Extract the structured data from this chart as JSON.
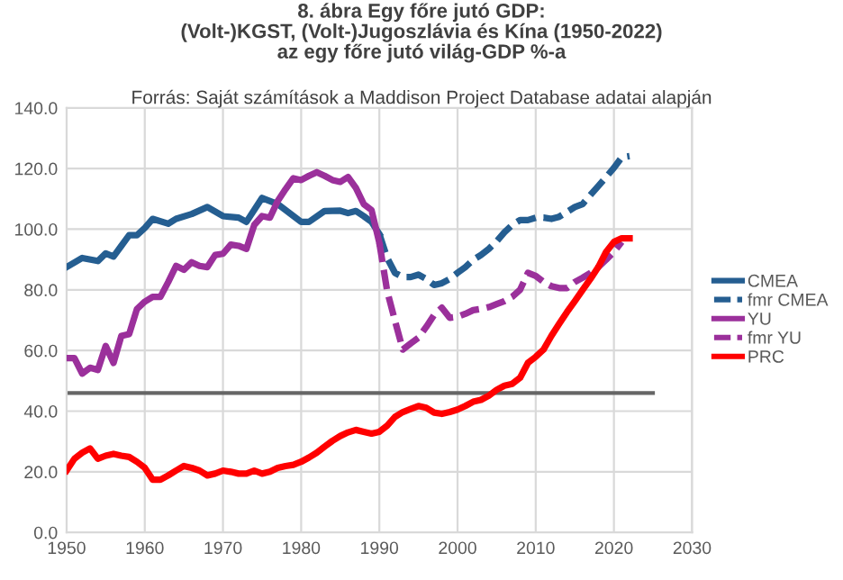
{
  "chart_data": {
    "type": "line",
    "title": "8. ábra Egy főre jutó GDP:\n(Volt-)KGST, (Volt-)Jugoszlávia és Kína (1950-2022)\naz egy főre jutó világ-GDP %-a",
    "subtitle": "Forrás: Saját számítások a Maddison Project Database adatai alapján",
    "xlim": [
      1950,
      2030
    ],
    "xticks": [
      1950,
      1960,
      1970,
      1980,
      1990,
      2000,
      2010,
      2020,
      2030
    ],
    "ylim": [
      0,
      140
    ],
    "yticks": [
      {
        "value": 0,
        "label": "0.0"
      },
      {
        "value": 20,
        "label": "20.0"
      },
      {
        "value": 40,
        "label": "40.0"
      },
      {
        "value": 60,
        "label": "60.0"
      },
      {
        "value": 80,
        "label": "80.0"
      },
      {
        "value": 100,
        "label": "100.0"
      },
      {
        "value": 120,
        "label": "120.0"
      },
      {
        "value": 140,
        "label": "140.0"
      }
    ],
    "grid": true,
    "legend": "right",
    "series": [
      {
        "name": "CMEA",
        "color": "#255e91",
        "line_style": "solid",
        "x": [
          1950,
          1952,
          1954,
          1955,
          1956,
          1957,
          1958,
          1959,
          1960,
          1961,
          1963,
          1964,
          1966,
          1968,
          1970,
          1972,
          1973,
          1975,
          1977,
          1980,
          1981,
          1983,
          1985,
          1986,
          1987,
          1988,
          1989,
          1990
        ],
        "values": [
          87.5,
          90.5,
          89.5,
          92,
          91,
          94.5,
          98,
          98,
          100.4,
          103.4,
          101.8,
          103.4,
          105,
          107.3,
          104.3,
          103.8,
          102.4,
          110.3,
          108.3,
          102.4,
          102.4,
          106,
          106.1,
          105.3,
          106,
          104.3,
          102.4,
          98.4
        ]
      },
      {
        "name": "fmr CMEA",
        "color": "#255e91",
        "line_style": "dashed",
        "x": [
          1990,
          1991,
          1992,
          1993,
          1994,
          1995,
          1996,
          1997,
          1998,
          1999,
          2000,
          2001,
          2002,
          2003,
          2004,
          2005,
          2006,
          2007,
          2008,
          2009,
          2010,
          2011,
          2012,
          2013,
          2014,
          2015,
          2016,
          2017,
          2018,
          2019,
          2020,
          2021,
          2022
        ],
        "values": [
          98.4,
          90.5,
          85.6,
          84.2,
          84.2,
          85,
          83.6,
          81.6,
          82.2,
          83.6,
          85.6,
          87.5,
          89.9,
          91.5,
          93.5,
          96,
          99,
          101.4,
          103,
          103,
          103.8,
          103.8,
          103.4,
          104.1,
          105.7,
          107.3,
          108.3,
          111.3,
          114.2,
          117.2,
          120.2,
          123.7,
          124.1
        ]
      },
      {
        "name": "YU",
        "color": "#9b309b",
        "line_style": "solid",
        "x": [
          1950,
          1951,
          1952,
          1953,
          1954,
          1955,
          1956,
          1957,
          1958,
          1959,
          1960,
          1961,
          1962,
          1963,
          1964,
          1965,
          1966,
          1967,
          1968,
          1969,
          1970,
          1971,
          1972,
          1973,
          1974,
          1975,
          1976,
          1977,
          1978,
          1979,
          1980,
          1981,
          1982,
          1983,
          1984,
          1985,
          1986,
          1987,
          1988,
          1989,
          1990
        ],
        "values": [
          57.5,
          57.5,
          52.4,
          54.3,
          53.6,
          61.5,
          55.9,
          64.8,
          65.4,
          73.7,
          76.1,
          77.7,
          77.7,
          82.6,
          87.9,
          86.6,
          89.1,
          87.9,
          87.5,
          91.5,
          91.9,
          94.9,
          94.5,
          93.5,
          101.4,
          104.3,
          103.8,
          109.3,
          113.2,
          116.8,
          116.2,
          117.6,
          118.8,
          117.6,
          116.2,
          115.6,
          117.2,
          113.6,
          108.3,
          106.3,
          95.5
        ]
      },
      {
        "name": "fmr YU",
        "color": "#9b309b",
        "line_style": "dashed",
        "x": [
          1990,
          1991,
          1992,
          1993,
          1994,
          1995,
          1996,
          1997,
          1998,
          1999,
          2000,
          2001,
          2002,
          2003,
          2004,
          2005,
          2006,
          2007,
          2008,
          2009,
          2010,
          2011,
          2012,
          2013,
          2014,
          2015,
          2016,
          2017,
          2018,
          2019,
          2020,
          2021
        ],
        "values": [
          95.5,
          79.6,
          69.8,
          60.3,
          62.3,
          64.2,
          67.8,
          71.7,
          74.1,
          70.8,
          71.1,
          72.1,
          73.3,
          73.7,
          74.3,
          75.3,
          76.3,
          77.7,
          80,
          85.6,
          84.6,
          82.6,
          81.2,
          80.6,
          80.6,
          82.6,
          84,
          85.6,
          87.5,
          89.9,
          92.5,
          95.8
        ]
      },
      {
        "name": "PRC",
        "color": "#ff0000",
        "line_style": "solid",
        "x": [
          1950,
          1951,
          1952,
          1953,
          1954,
          1955,
          1956,
          1957,
          1958,
          1959,
          1960,
          1961,
          1962,
          1963,
          1964,
          1965,
          1966,
          1967,
          1968,
          1969,
          1970,
          1971,
          1972,
          1973,
          1974,
          1975,
          1976,
          1977,
          1978,
          1979,
          1980,
          1981,
          1982,
          1983,
          1984,
          1985,
          1986,
          1987,
          1988,
          1989,
          1990,
          1991,
          1992,
          1993,
          1994,
          1995,
          1996,
          1997,
          1998,
          1999,
          2000,
          2001,
          2002,
          2003,
          2004,
          2005,
          2006,
          2007,
          2008,
          2009,
          2010,
          2011,
          2012,
          2013,
          2014,
          2015,
          2016,
          2017,
          2018,
          2019,
          2020,
          2021,
          2022
        ],
        "values": [
          20.4,
          24.3,
          26.3,
          27.7,
          24.3,
          25.3,
          25.9,
          25.3,
          24.9,
          23.3,
          21.3,
          17.4,
          17.4,
          18.8,
          20.4,
          21.9,
          21.3,
          20.4,
          18.8,
          19.4,
          20.4,
          20,
          19.4,
          19.4,
          20.4,
          19.4,
          20,
          21.3,
          21.9,
          22.3,
          23.3,
          24.7,
          26.3,
          28.3,
          30.2,
          31.8,
          33,
          33.8,
          33.2,
          32.6,
          33.2,
          35.2,
          38.1,
          39.7,
          40.7,
          41.7,
          41.1,
          39.5,
          39.1,
          39.7,
          40.5,
          41.7,
          43.1,
          43.7,
          45.1,
          47,
          48.4,
          49,
          51,
          55.9,
          57.9,
          60.3,
          64.8,
          68.8,
          72.7,
          76.3,
          80,
          83.6,
          87.5,
          92.5,
          95.8,
          97,
          97
        ]
      },
      {
        "color": "#666666",
        "line_style": "solid",
        "x": [
          1950,
          2025
        ],
        "values": [
          46,
          46
        ]
      }
    ]
  }
}
